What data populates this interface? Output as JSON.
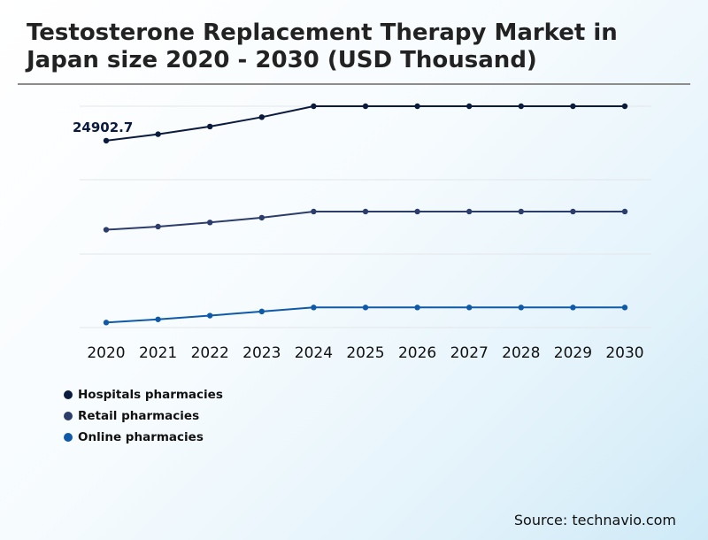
{
  "chart_data": {
    "type": "line",
    "title": "Testosterone Replacement Therapy Market in Japan size 2020 - 2030 (USD Thousand)",
    "categories": [
      "2020",
      "2021",
      "2022",
      "2023",
      "2024",
      "2025",
      "2026",
      "2027",
      "2028",
      "2029",
      "2030"
    ],
    "series": [
      {
        "name": "Hospitals pharmacies",
        "color": "#0b1b3d",
        "values": [
          24902.7,
          25420,
          26030,
          26780,
          27650,
          27650,
          27650,
          27650,
          27650,
          27650,
          27650
        ]
      },
      {
        "name": "Retail pharmacies",
        "color": "#2d3d6b",
        "values": [
          17800,
          18050,
          18380,
          18760,
          19250,
          19250,
          19250,
          19250,
          19250,
          19250,
          19250
        ]
      },
      {
        "name": "Online pharmacies",
        "color": "#0f5aa8",
        "values": [
          10400,
          10650,
          10950,
          11280,
          11600,
          11600,
          11600,
          11600,
          11600,
          11600,
          11600
        ]
      }
    ],
    "data_labels": [
      {
        "series": 0,
        "index": 0,
        "text": "24902.7"
      }
    ],
    "ylim": [
      10000,
      27650
    ],
    "grid": true,
    "legend_position": "bottom-left",
    "xlabel": "",
    "ylabel": ""
  },
  "source": "Source: technavio.com"
}
